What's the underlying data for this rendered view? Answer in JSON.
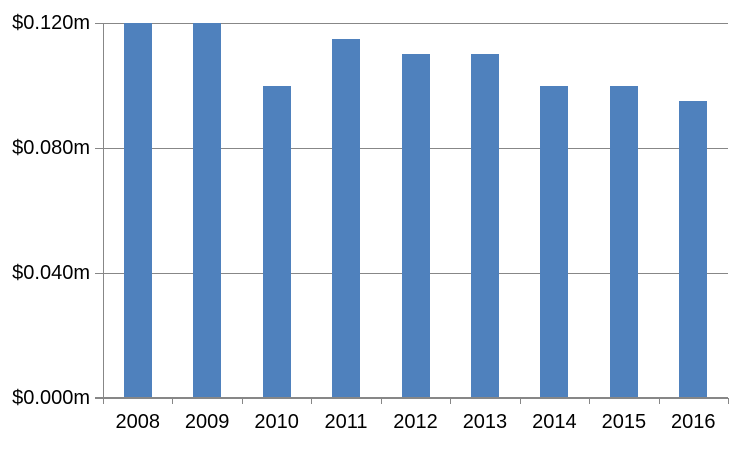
{
  "chart_data": {
    "type": "bar",
    "title": "",
    "xlabel": "",
    "ylabel": "",
    "categories": [
      "2008",
      "2009",
      "2010",
      "2011",
      "2012",
      "2013",
      "2014",
      "2015",
      "2016"
    ],
    "values": [
      0.12,
      0.12,
      0.1,
      0.115,
      0.11,
      0.11,
      0.1,
      0.1,
      0.095
    ],
    "value_unit": "$m",
    "ylim": [
      0,
      0.12
    ],
    "y_ticks": [
      {
        "value": 0.12,
        "label": "$0.120m"
      },
      {
        "value": 0.08,
        "label": "$0.080m"
      },
      {
        "value": 0.04,
        "label": "$0.040m"
      },
      {
        "value": 0.0,
        "label": "$0.000m"
      }
    ],
    "grid": true,
    "legend_position": "none",
    "colors": {
      "bar": "#4F81BD",
      "gridline": "#878787",
      "axis": "#878787",
      "text": "#000000",
      "background": "#FFFFFF"
    }
  }
}
